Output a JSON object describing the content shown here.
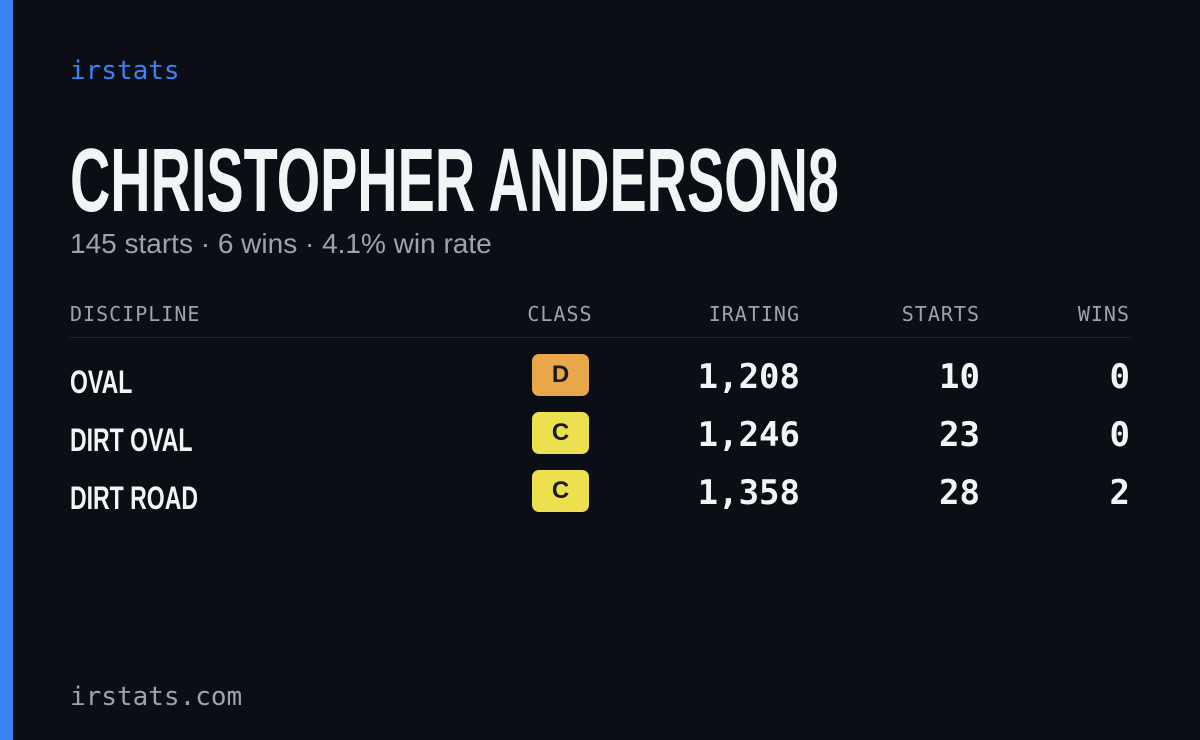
{
  "brand": "irstats",
  "header": {
    "name": "CHRISTOPHER ANDERSON8",
    "summary": "145 starts · 6 wins · 4.1% win rate"
  },
  "table": {
    "columns": [
      "DISCIPLINE",
      "CLASS",
      "IRATING",
      "STARTS",
      "WINS"
    ],
    "rows": [
      [
        "OVAL",
        "D",
        "1,208",
        "10",
        "0"
      ],
      [
        "DIRT OVAL",
        "C",
        "1,246",
        "23",
        "0"
      ],
      [
        "DIRT ROAD",
        "C",
        "1,358",
        "28",
        "2"
      ]
    ]
  },
  "footer": "irstats.com"
}
